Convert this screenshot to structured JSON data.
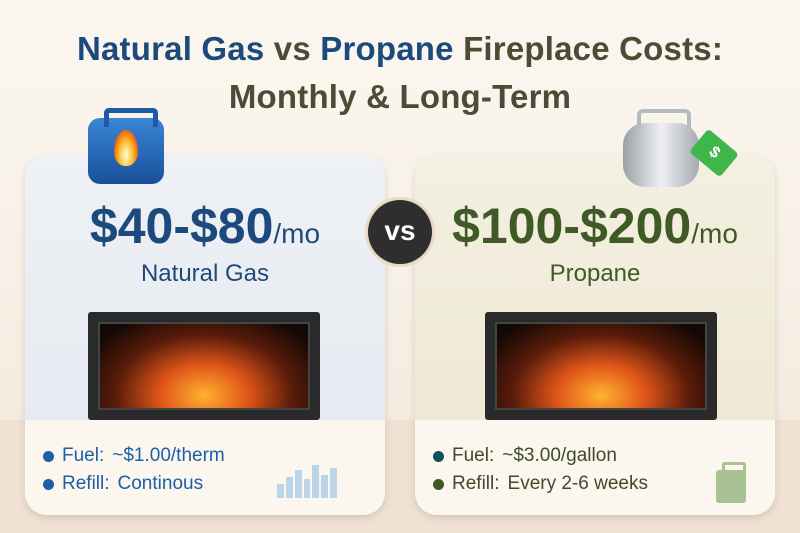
{
  "title": {
    "part1": "Natural Gas",
    "part2": " vs ",
    "part3": "Propane",
    "part4": " Fireplace Costs:",
    "line2": "Monthly & Long-Term"
  },
  "vs_label": "vs",
  "natural_gas": {
    "price": "$40-$80",
    "unit": "/mo",
    "name": "Natural Gas",
    "fuel_label": "Fuel:",
    "fuel_value": "~$1.00/therm",
    "refill_label": "Refill:",
    "refill_value": "Continous",
    "color": "#1d4a7c"
  },
  "propane": {
    "price": "$100-$200",
    "unit": "/mo",
    "name": "Propane",
    "fuel_label": "Fuel:",
    "fuel_value": "~$3.00/gallon",
    "refill_label": "Refill:",
    "refill_value": "Every 2-6 weeks",
    "color": "#3f5a26",
    "tag_text": "$"
  },
  "icons": [
    "gas-can-flame-icon",
    "propane-tank-icon",
    "price-tag-icon",
    "bar-chart-icon",
    "toolbox-icon",
    "fireplace-icon"
  ]
}
